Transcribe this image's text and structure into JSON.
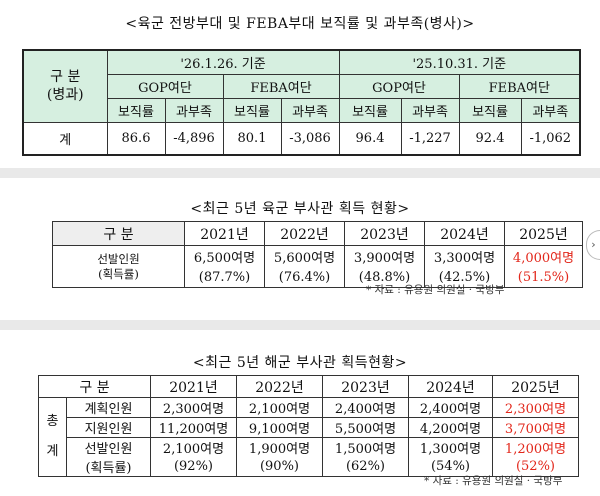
{
  "t1": {
    "title": "<육군 전방부대 및 FEBA부대 보직률 및 과부족(병사)>",
    "section_label_1": "구 분",
    "section_label_2": "(병과)",
    "date_a": "'26.1.26. 기준",
    "date_b": "'25.10.31. 기준",
    "gop": "GOP여단",
    "feba": "FEBA여단",
    "rate": "보직률",
    "surplus": "과부족",
    "row_label": "계",
    "values": [
      "86.6",
      "-4,896",
      "80.1",
      "-3,086",
      "96.4",
      "-1,227",
      "92.4",
      "-1,062"
    ]
  },
  "t2": {
    "title": "<최근 5년 육군 부사관 획득 현황>",
    "header": "구 분",
    "years": [
      "2021년",
      "2022년",
      "2023년",
      "2024년",
      "2025년"
    ],
    "row_label_1": "선발인원",
    "row_label_2": "(획득률)",
    "counts": [
      "6,500여명",
      "5,600여명",
      "3,900여명",
      "3,300여명",
      "4,000여명"
    ],
    "rates": [
      "(87.7%)",
      "(76.4%)",
      "(48.8%)",
      "(42.5%)",
      "(51.5%)"
    ],
    "source": "* 자료 : 유용원 의원실 · 국방부"
  },
  "t3": {
    "title": "<최근 5년 해군 부사관 획득현황>",
    "header": "구 분",
    "side_1": "총",
    "side_2": "계",
    "years": [
      "2021년",
      "2022년",
      "2023년",
      "2024년",
      "2025년"
    ],
    "plan_label": "계획인원",
    "apply_label": "지원인원",
    "select_label": "선발인원",
    "rate_label": "(획득률)",
    "plan": [
      "2,300여명",
      "2,100여명",
      "2,400여명",
      "2,400여명",
      "2,300여명"
    ],
    "apply": [
      "11,200여명",
      "9,100여명",
      "5,500여명",
      "4,200여명",
      "3,700여명"
    ],
    "select": [
      "2,100여명",
      "1,900여명",
      "1,500여명",
      "1,300여명",
      "1,200여명"
    ],
    "rates": [
      "(92%)",
      "(90%)",
      "(62%)",
      "(54%)",
      "(52%)"
    ],
    "source": "* 자료 : 유용원 의원실 · 국방부"
  },
  "ui": {
    "scroll_icon": "›"
  }
}
